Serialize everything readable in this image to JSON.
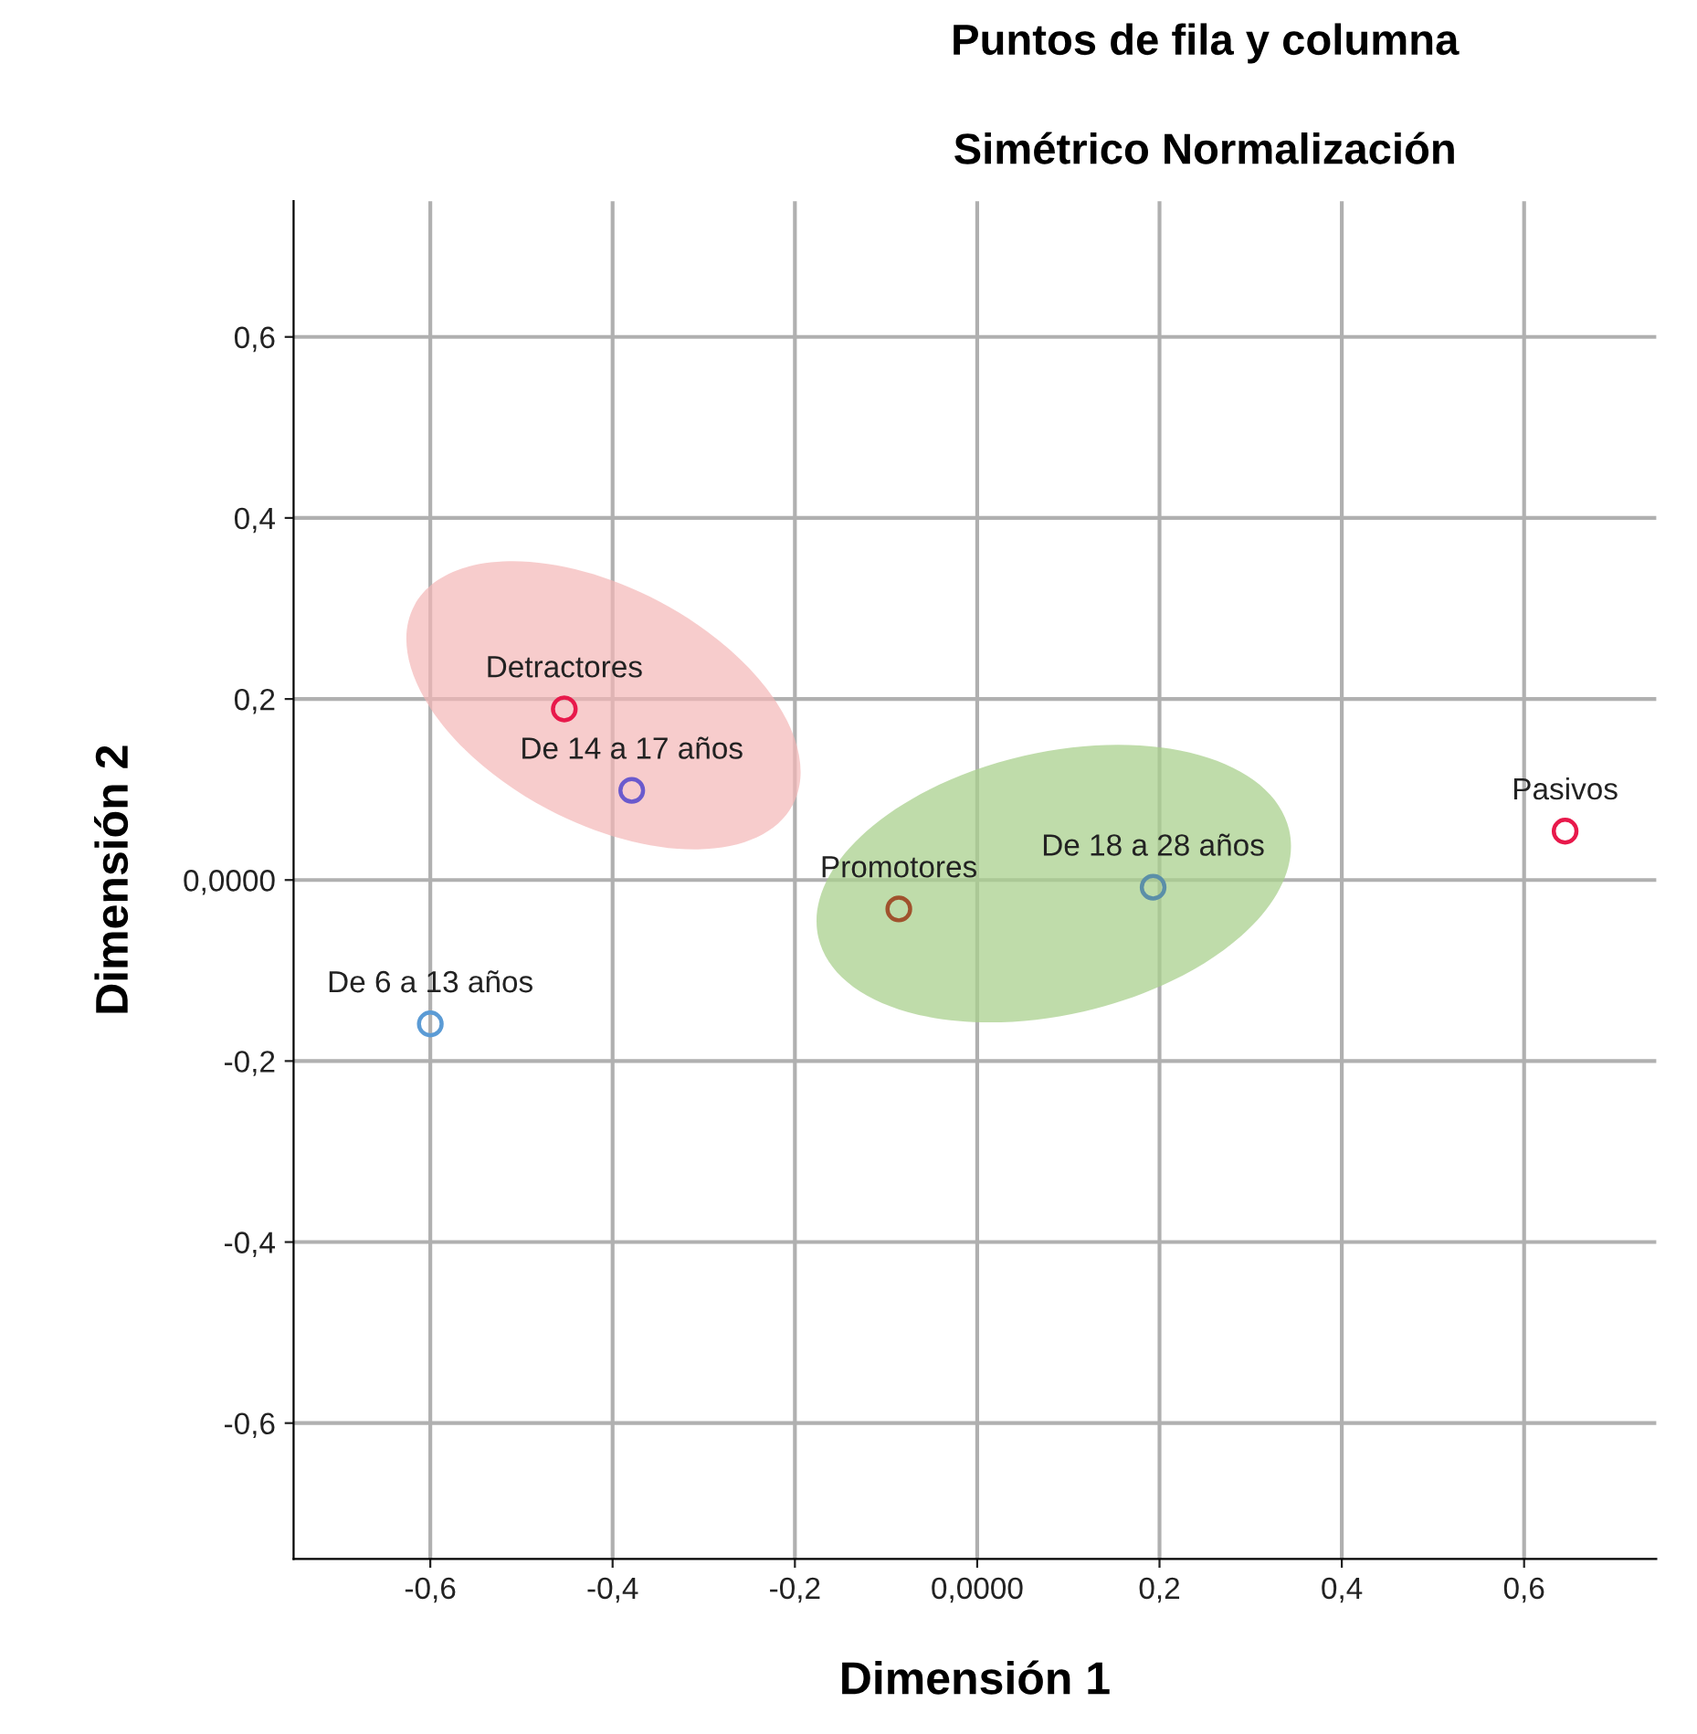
{
  "chart_data": {
    "type": "scatter",
    "title": "Puntos de fila y columna",
    "subtitle": "Simétrico Normalización",
    "xlabel": "Dimensión 1",
    "ylabel": "Dimensión 2",
    "x": [
      -0.453,
      -0.086,
      0.645,
      -0.6,
      -0.379,
      0.193
    ],
    "values": [
      0.189,
      -0.032,
      0.054,
      -0.159,
      0.099,
      -0.008
    ],
    "colors": [
      "#e8194b",
      "#a0522d",
      "#e8194b",
      "#5b9bd5",
      "#6a5acd",
      "#5b8fa8"
    ],
    "marker": "circle",
    "grid": true,
    "legend": false,
    "xlim": [
      -0.75,
      0.745
    ],
    "ylim": [
      -0.75,
      0.75
    ],
    "xticks": [
      {
        "value": -0.6,
        "label": "-0,6"
      },
      {
        "value": -0.4,
        "label": "-0,4"
      },
      {
        "value": -0.2,
        "label": "-0,2"
      },
      {
        "value": 0,
        "label": "0,0000"
      },
      {
        "value": 0.2,
        "label": "0,2"
      },
      {
        "value": 0.4,
        "label": "0,4"
      },
      {
        "value": 0.6,
        "label": "0,6"
      }
    ],
    "yticks": [
      {
        "value": -0.6,
        "label": "-0,6"
      },
      {
        "value": -0.4,
        "label": "-0,4"
      },
      {
        "value": -0.2,
        "label": "-0,2"
      },
      {
        "value": 0,
        "label": "0,0000"
      },
      {
        "value": 0.2,
        "label": "0,2"
      },
      {
        "value": 0.4,
        "label": "0,4"
      },
      {
        "value": 0.6,
        "label": "0,6"
      }
    ],
    "annotations": [
      {
        "text": "Detractores",
        "x": -0.453,
        "y": 0.189
      },
      {
        "text": "Promotores",
        "x": -0.086,
        "y": -0.032
      },
      {
        "text": "Pasivos",
        "x": 0.645,
        "y": 0.054
      },
      {
        "text": "De 6 a 13 años",
        "x": -0.6,
        "y": -0.159
      },
      {
        "text": "De 14 a 17 años",
        "x": -0.379,
        "y": 0.099
      },
      {
        "text": "De 18 a 28 años",
        "x": 0.193,
        "y": -0.008
      }
    ]
  }
}
